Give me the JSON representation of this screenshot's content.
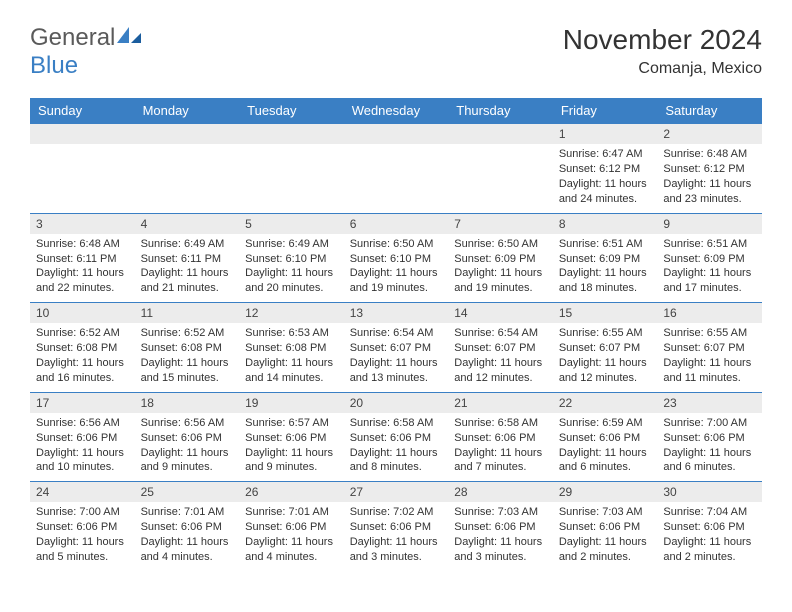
{
  "logo": {
    "part1": "General",
    "part2": "Blue"
  },
  "title": "November 2024",
  "location": "Comanja, Mexico",
  "colors": {
    "header_bg": "#3a7fc4",
    "header_text": "#ffffff",
    "daynum_bg": "#ececec",
    "text": "#333333",
    "border": "#3a7fc4",
    "page_bg": "#ffffff"
  },
  "day_headers": [
    "Sunday",
    "Monday",
    "Tuesday",
    "Wednesday",
    "Thursday",
    "Friday",
    "Saturday"
  ],
  "weeks": [
    [
      {
        "empty": true
      },
      {
        "empty": true
      },
      {
        "empty": true
      },
      {
        "empty": true
      },
      {
        "empty": true
      },
      {
        "num": "1",
        "sunrise": "Sunrise: 6:47 AM",
        "sunset": "Sunset: 6:12 PM",
        "daylight": "Daylight: 11 hours and 24 minutes."
      },
      {
        "num": "2",
        "sunrise": "Sunrise: 6:48 AM",
        "sunset": "Sunset: 6:12 PM",
        "daylight": "Daylight: 11 hours and 23 minutes."
      }
    ],
    [
      {
        "num": "3",
        "sunrise": "Sunrise: 6:48 AM",
        "sunset": "Sunset: 6:11 PM",
        "daylight": "Daylight: 11 hours and 22 minutes."
      },
      {
        "num": "4",
        "sunrise": "Sunrise: 6:49 AM",
        "sunset": "Sunset: 6:11 PM",
        "daylight": "Daylight: 11 hours and 21 minutes."
      },
      {
        "num": "5",
        "sunrise": "Sunrise: 6:49 AM",
        "sunset": "Sunset: 6:10 PM",
        "daylight": "Daylight: 11 hours and 20 minutes."
      },
      {
        "num": "6",
        "sunrise": "Sunrise: 6:50 AM",
        "sunset": "Sunset: 6:10 PM",
        "daylight": "Daylight: 11 hours and 19 minutes."
      },
      {
        "num": "7",
        "sunrise": "Sunrise: 6:50 AM",
        "sunset": "Sunset: 6:09 PM",
        "daylight": "Daylight: 11 hours and 19 minutes."
      },
      {
        "num": "8",
        "sunrise": "Sunrise: 6:51 AM",
        "sunset": "Sunset: 6:09 PM",
        "daylight": "Daylight: 11 hours and 18 minutes."
      },
      {
        "num": "9",
        "sunrise": "Sunrise: 6:51 AM",
        "sunset": "Sunset: 6:09 PM",
        "daylight": "Daylight: 11 hours and 17 minutes."
      }
    ],
    [
      {
        "num": "10",
        "sunrise": "Sunrise: 6:52 AM",
        "sunset": "Sunset: 6:08 PM",
        "daylight": "Daylight: 11 hours and 16 minutes."
      },
      {
        "num": "11",
        "sunrise": "Sunrise: 6:52 AM",
        "sunset": "Sunset: 6:08 PM",
        "daylight": "Daylight: 11 hours and 15 minutes."
      },
      {
        "num": "12",
        "sunrise": "Sunrise: 6:53 AM",
        "sunset": "Sunset: 6:08 PM",
        "daylight": "Daylight: 11 hours and 14 minutes."
      },
      {
        "num": "13",
        "sunrise": "Sunrise: 6:54 AM",
        "sunset": "Sunset: 6:07 PM",
        "daylight": "Daylight: 11 hours and 13 minutes."
      },
      {
        "num": "14",
        "sunrise": "Sunrise: 6:54 AM",
        "sunset": "Sunset: 6:07 PM",
        "daylight": "Daylight: 11 hours and 12 minutes."
      },
      {
        "num": "15",
        "sunrise": "Sunrise: 6:55 AM",
        "sunset": "Sunset: 6:07 PM",
        "daylight": "Daylight: 11 hours and 12 minutes."
      },
      {
        "num": "16",
        "sunrise": "Sunrise: 6:55 AM",
        "sunset": "Sunset: 6:07 PM",
        "daylight": "Daylight: 11 hours and 11 minutes."
      }
    ],
    [
      {
        "num": "17",
        "sunrise": "Sunrise: 6:56 AM",
        "sunset": "Sunset: 6:06 PM",
        "daylight": "Daylight: 11 hours and 10 minutes."
      },
      {
        "num": "18",
        "sunrise": "Sunrise: 6:56 AM",
        "sunset": "Sunset: 6:06 PM",
        "daylight": "Daylight: 11 hours and 9 minutes."
      },
      {
        "num": "19",
        "sunrise": "Sunrise: 6:57 AM",
        "sunset": "Sunset: 6:06 PM",
        "daylight": "Daylight: 11 hours and 9 minutes."
      },
      {
        "num": "20",
        "sunrise": "Sunrise: 6:58 AM",
        "sunset": "Sunset: 6:06 PM",
        "daylight": "Daylight: 11 hours and 8 minutes."
      },
      {
        "num": "21",
        "sunrise": "Sunrise: 6:58 AM",
        "sunset": "Sunset: 6:06 PM",
        "daylight": "Daylight: 11 hours and 7 minutes."
      },
      {
        "num": "22",
        "sunrise": "Sunrise: 6:59 AM",
        "sunset": "Sunset: 6:06 PM",
        "daylight": "Daylight: 11 hours and 6 minutes."
      },
      {
        "num": "23",
        "sunrise": "Sunrise: 7:00 AM",
        "sunset": "Sunset: 6:06 PM",
        "daylight": "Daylight: 11 hours and 6 minutes."
      }
    ],
    [
      {
        "num": "24",
        "sunrise": "Sunrise: 7:00 AM",
        "sunset": "Sunset: 6:06 PM",
        "daylight": "Daylight: 11 hours and 5 minutes."
      },
      {
        "num": "25",
        "sunrise": "Sunrise: 7:01 AM",
        "sunset": "Sunset: 6:06 PM",
        "daylight": "Daylight: 11 hours and 4 minutes."
      },
      {
        "num": "26",
        "sunrise": "Sunrise: 7:01 AM",
        "sunset": "Sunset: 6:06 PM",
        "daylight": "Daylight: 11 hours and 4 minutes."
      },
      {
        "num": "27",
        "sunrise": "Sunrise: 7:02 AM",
        "sunset": "Sunset: 6:06 PM",
        "daylight": "Daylight: 11 hours and 3 minutes."
      },
      {
        "num": "28",
        "sunrise": "Sunrise: 7:03 AM",
        "sunset": "Sunset: 6:06 PM",
        "daylight": "Daylight: 11 hours and 3 minutes."
      },
      {
        "num": "29",
        "sunrise": "Sunrise: 7:03 AM",
        "sunset": "Sunset: 6:06 PM",
        "daylight": "Daylight: 11 hours and 2 minutes."
      },
      {
        "num": "30",
        "sunrise": "Sunrise: 7:04 AM",
        "sunset": "Sunset: 6:06 PM",
        "daylight": "Daylight: 11 hours and 2 minutes."
      }
    ]
  ]
}
